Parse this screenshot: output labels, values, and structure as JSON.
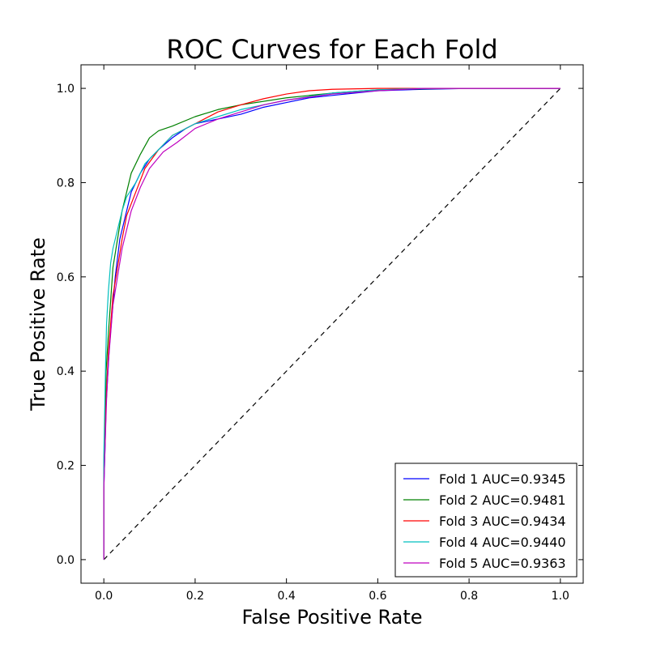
{
  "chart_data": {
    "type": "line",
    "title": "ROC Curves for Each Fold",
    "xlabel": "False Positive Rate",
    "ylabel": "True Positive Rate",
    "xlim": [
      -0.05,
      1.05
    ],
    "ylim": [
      -0.05,
      1.05
    ],
    "xticks": [
      0.0,
      0.2,
      0.4,
      0.6,
      0.8,
      1.0
    ],
    "yticks": [
      0.0,
      0.2,
      0.4,
      0.6,
      0.8,
      1.0
    ],
    "xtick_labels": [
      "0.0",
      "0.2",
      "0.4",
      "0.6",
      "0.8",
      "1.0"
    ],
    "ytick_labels": [
      "0.0",
      "0.2",
      "0.4",
      "0.6",
      "0.8",
      "1.0"
    ],
    "grid": false,
    "legend_position": "lower-right",
    "series": [
      {
        "name": "Fold 1 AUC=0.9345",
        "color": "#0000ff",
        "x": [
          0.0,
          0.0,
          0.003,
          0.005,
          0.008,
          0.012,
          0.018,
          0.025,
          0.035,
          0.045,
          0.06,
          0.08,
          0.1,
          0.12,
          0.15,
          0.18,
          0.2,
          0.25,
          0.3,
          0.35,
          0.4,
          0.45,
          0.5,
          0.6,
          0.7,
          0.8,
          0.9,
          1.0
        ],
        "y": [
          0.0,
          0.15,
          0.25,
          0.33,
          0.38,
          0.45,
          0.52,
          0.6,
          0.68,
          0.72,
          0.78,
          0.82,
          0.85,
          0.87,
          0.895,
          0.915,
          0.925,
          0.935,
          0.945,
          0.96,
          0.97,
          0.98,
          0.985,
          0.995,
          0.998,
          1.0,
          1.0,
          1.0
        ]
      },
      {
        "name": "Fold 2 AUC=0.9481",
        "color": "#008000",
        "x": [
          0.0,
          0.0,
          0.003,
          0.005,
          0.01,
          0.015,
          0.02,
          0.03,
          0.04,
          0.05,
          0.06,
          0.08,
          0.1,
          0.12,
          0.15,
          0.2,
          0.25,
          0.3,
          0.4,
          0.5,
          0.6,
          0.7,
          0.8,
          0.9,
          1.0
        ],
        "y": [
          0.0,
          0.2,
          0.3,
          0.4,
          0.48,
          0.55,
          0.62,
          0.68,
          0.74,
          0.78,
          0.82,
          0.86,
          0.895,
          0.91,
          0.92,
          0.94,
          0.955,
          0.965,
          0.98,
          0.99,
          0.997,
          0.999,
          1.0,
          1.0,
          1.0
        ]
      },
      {
        "name": "Fold 3 AUC=0.9434",
        "color": "#ff0000",
        "x": [
          0.0,
          0.0,
          0.003,
          0.006,
          0.01,
          0.015,
          0.02,
          0.03,
          0.04,
          0.05,
          0.07,
          0.09,
          0.12,
          0.15,
          0.2,
          0.25,
          0.3,
          0.35,
          0.4,
          0.45,
          0.5,
          0.6,
          0.7,
          0.8,
          0.9,
          1.0
        ],
        "y": [
          0.0,
          0.18,
          0.28,
          0.36,
          0.44,
          0.5,
          0.56,
          0.62,
          0.68,
          0.73,
          0.78,
          0.83,
          0.87,
          0.9,
          0.925,
          0.95,
          0.965,
          0.978,
          0.988,
          0.995,
          0.998,
          1.0,
          1.0,
          1.0,
          1.0,
          1.0
        ]
      },
      {
        "name": "Fold 4 AUC=0.9440",
        "color": "#00bfbf",
        "x": [
          0.0,
          0.0,
          0.002,
          0.004,
          0.006,
          0.01,
          0.015,
          0.02,
          0.03,
          0.04,
          0.05,
          0.07,
          0.09,
          0.12,
          0.15,
          0.2,
          0.25,
          0.3,
          0.4,
          0.5,
          0.6,
          0.7,
          0.8,
          0.9,
          1.0
        ],
        "y": [
          0.0,
          0.22,
          0.32,
          0.42,
          0.5,
          0.57,
          0.63,
          0.66,
          0.7,
          0.74,
          0.77,
          0.8,
          0.84,
          0.87,
          0.9,
          0.925,
          0.94,
          0.955,
          0.975,
          0.99,
          0.997,
          1.0,
          1.0,
          1.0,
          1.0
        ]
      },
      {
        "name": "Fold 5 AUC=0.9363",
        "color": "#bf00bf",
        "x": [
          0.0,
          0.0,
          0.003,
          0.006,
          0.01,
          0.015,
          0.02,
          0.03,
          0.04,
          0.05,
          0.06,
          0.08,
          0.1,
          0.13,
          0.16,
          0.2,
          0.25,
          0.3,
          0.35,
          0.4,
          0.5,
          0.6,
          0.7,
          0.8,
          0.9,
          1.0
        ],
        "y": [
          0.0,
          0.15,
          0.25,
          0.34,
          0.42,
          0.48,
          0.54,
          0.6,
          0.66,
          0.7,
          0.74,
          0.79,
          0.83,
          0.865,
          0.885,
          0.915,
          0.935,
          0.95,
          0.965,
          0.975,
          0.988,
          0.995,
          1.0,
          1.0,
          1.0,
          1.0
        ]
      }
    ],
    "reference_line": {
      "x": [
        0.0,
        1.0
      ],
      "y": [
        0.0,
        1.0
      ],
      "style": "dashed",
      "color": "#000000"
    }
  }
}
